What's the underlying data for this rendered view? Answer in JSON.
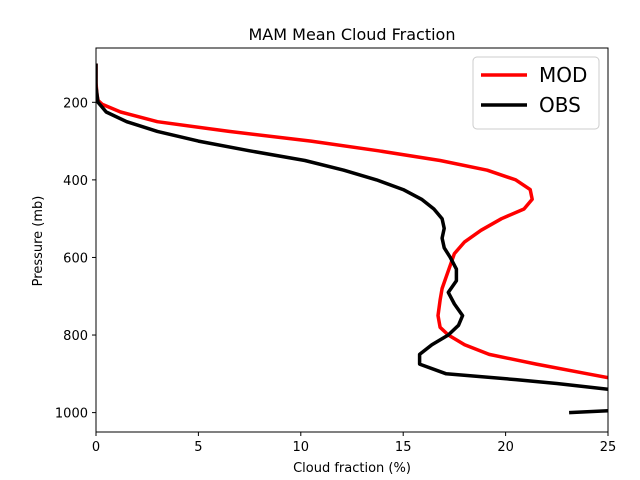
{
  "chart_data": {
    "type": "line",
    "title": "MAM Mean Cloud Fraction",
    "xlabel": "Cloud fraction (%)",
    "ylabel": "Pressure (mb)",
    "xlim": [
      0,
      25
    ],
    "ylim": [
      1050,
      60
    ],
    "y_inverted": true,
    "xticks": [
      0,
      5,
      10,
      15,
      20,
      25
    ],
    "yticks": [
      200,
      400,
      600,
      800,
      1000
    ],
    "grid": false,
    "legend_position": "top-right",
    "series": [
      {
        "name": "MOD",
        "color": "#ff0000",
        "x": [
          0.0,
          0.0,
          0.05,
          0.1,
          0.3,
          1.2,
          3.0,
          6.5,
          10.5,
          13.8,
          16.8,
          19.1,
          20.5,
          21.2,
          21.3,
          20.9,
          19.8,
          18.8,
          18.0,
          17.5,
          17.3,
          17.1,
          16.9,
          16.8,
          16.7,
          16.8,
          17.2,
          18.0,
          19.2,
          21.5,
          24.0,
          25.0
        ],
        "y": [
          100,
          150,
          180,
          195,
          205,
          225,
          250,
          275,
          300,
          325,
          350,
          375,
          400,
          425,
          450,
          475,
          500,
          530,
          560,
          590,
          620,
          650,
          680,
          710,
          750,
          780,
          800,
          825,
          850,
          875,
          900,
          910
        ]
      },
      {
        "name": "OBS",
        "color": "#000000",
        "x": [
          0.0,
          0.0,
          0.1,
          0.5,
          1.5,
          3.0,
          5.0,
          7.5,
          10.2,
          12.1,
          13.7,
          15.0,
          15.9,
          16.5,
          16.9,
          17.0,
          16.9,
          17.0,
          17.3,
          17.6,
          17.6,
          17.2,
          17.5,
          17.9,
          17.7,
          17.2,
          16.4,
          15.8,
          15.8,
          17.1,
          20.5,
          22.5,
          25.0
        ],
        "y": [
          100,
          160,
          200,
          225,
          250,
          275,
          300,
          325,
          350,
          375,
          400,
          425,
          450,
          475,
          500,
          525,
          550,
          575,
          600,
          630,
          660,
          690,
          720,
          750,
          775,
          800,
          825,
          850,
          875,
          900,
          915,
          925,
          940
        ]
      },
      {
        "name": "",
        "color": "#000000",
        "x": [
          23.1,
          25.0
        ],
        "y": [
          1000,
          995
        ]
      }
    ]
  }
}
